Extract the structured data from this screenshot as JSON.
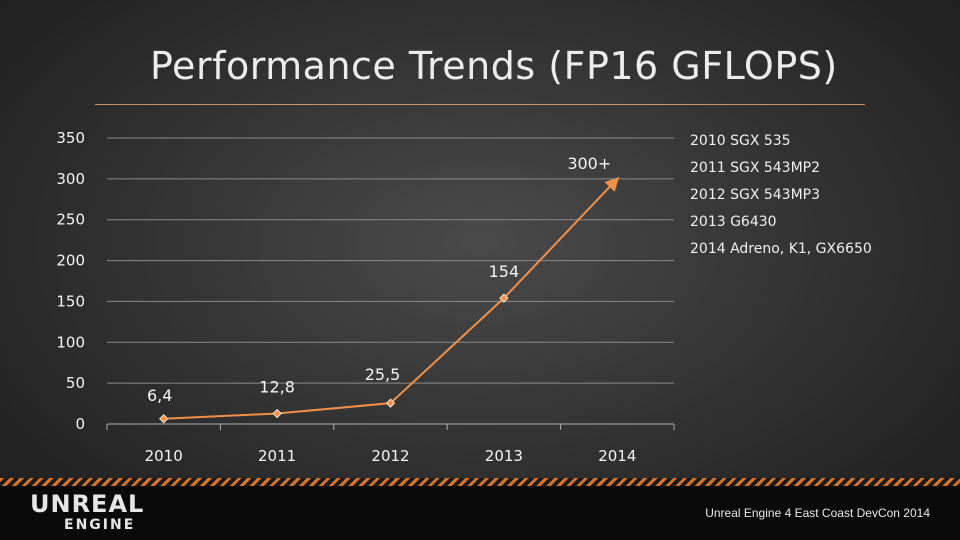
{
  "title": "Performance Trends (FP16 GFLOPS)",
  "legend_lines": [
    "2010 SGX 535",
    "2011 SGX 543MP2",
    "2012 SGX 543MP3",
    "2013 G6430",
    "2014 Adreno, K1, GX6650"
  ],
  "footer": {
    "logo_line1": "UNREAL",
    "logo_line2": "ENGINE",
    "caption": "Unreal Engine 4 East Coast DevCon 2014"
  },
  "colors": {
    "series": "#f0914a",
    "accent_rule": "#c8946a",
    "gridline": "#8a8a8a"
  },
  "chart_data": {
    "type": "line",
    "categories": [
      "2010",
      "2011",
      "2012",
      "2013",
      "2014"
    ],
    "values": [
      6.4,
      12.8,
      25.5,
      154,
      300
    ],
    "data_labels": [
      "6,4",
      "12,8",
      "25,5",
      "154",
      "300+"
    ],
    "ylim": [
      0,
      350
    ],
    "yticks": [
      0,
      50,
      100,
      150,
      200,
      250,
      300,
      350
    ],
    "grid": true,
    "last_point_marker": "arrow"
  }
}
